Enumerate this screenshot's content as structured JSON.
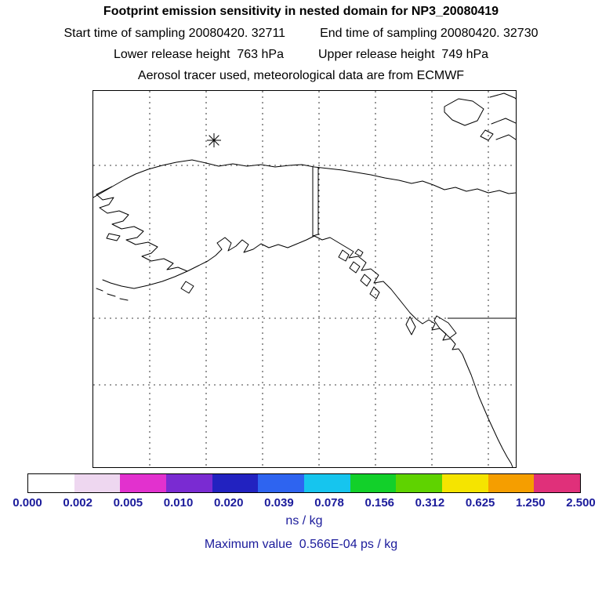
{
  "header": {
    "title": "Footprint emission sensitivity in nested domain for NP3_20080419",
    "start_time": "Start time of sampling 20080420. 32711",
    "end_time": "End time of sampling 20080420. 32730",
    "lower_release": "Lower release height  763 hPa",
    "upper_release": "Upper release height  749 hPa",
    "tracer_info": "Aerosol tracer used, meteorological data are from ECMWF"
  },
  "map": {
    "marker": "release-location-asterisk",
    "region": "Alaska and western North America coastlines with dashed lat/lon gridlines"
  },
  "colorbar": {
    "labels": [
      "0.000",
      "0.002",
      "0.005",
      "0.010",
      "0.020",
      "0.039",
      "0.078",
      "0.156",
      "0.312",
      "0.625",
      "1.250",
      "2.500"
    ],
    "colors": [
      "#ffffff",
      "#eed7f0",
      "#e231ce",
      "#7a2bd2",
      "#2222c0",
      "#2e64f0",
      "#16c5ee",
      "#12d02a",
      "#5fd300",
      "#f5e400",
      "#f59e00",
      "#e0307a"
    ],
    "units": "ns / kg",
    "label_color": "#1b1b9b"
  },
  "footer": {
    "max_value_label": "Maximum value  0.566E-04 ps / kg"
  },
  "chart_data": {
    "type": "heatmap",
    "title": "Footprint emission sensitivity in nested domain for NP3_20080419",
    "colorbar_levels": [
      0.0,
      0.002,
      0.005,
      0.01,
      0.02,
      0.039,
      0.078,
      0.156,
      0.312,
      0.625,
      1.25,
      2.5
    ],
    "colorbar_units": "ns / kg",
    "max_value_text": "0.566E-04 ps / kg",
    "visible_field": "no colored sensitivity field visible; map shows only coastlines, gridlines and release marker",
    "legend_position": "bottom"
  }
}
